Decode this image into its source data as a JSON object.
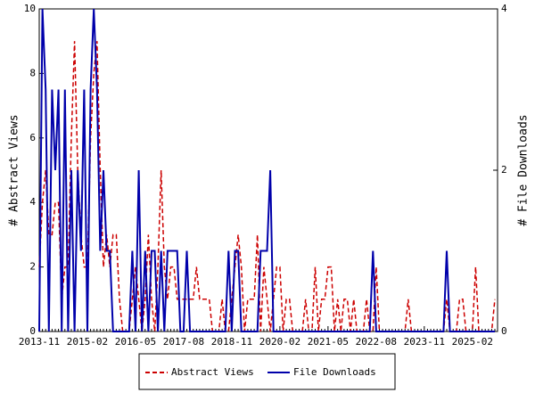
{
  "chart_data": {
    "type": "line",
    "y_label": "# Abstract Views",
    "y2_label": "# File Downloads",
    "categories": [
      "2013-11",
      null,
      null,
      null,
      null,
      null,
      null,
      null,
      null,
      null,
      null,
      null,
      null,
      null,
      null,
      "2015-02",
      null,
      null,
      null,
      null,
      null,
      null,
      null,
      null,
      null,
      null,
      null,
      null,
      null,
      null,
      "2016-05",
      null,
      null,
      null,
      null,
      null,
      null,
      null,
      null,
      null,
      null,
      null,
      null,
      null,
      null,
      "2017-08",
      null,
      null,
      null,
      null,
      null,
      null,
      null,
      null,
      null,
      null,
      null,
      null,
      null,
      null,
      "2018-11",
      null,
      null,
      null,
      null,
      null,
      null,
      null,
      null,
      null,
      null,
      null,
      null,
      null,
      null,
      "2020-02",
      null,
      null,
      null,
      null,
      null,
      null,
      null,
      null,
      null,
      null,
      null,
      null,
      null,
      null,
      "2021-05",
      null,
      null,
      null,
      null,
      null,
      null,
      null,
      null,
      null,
      null,
      null,
      null,
      null,
      null,
      "2022-08",
      null,
      null,
      null,
      null,
      null,
      null,
      null,
      null,
      null,
      null,
      null,
      null,
      null,
      null,
      "2023-11",
      null,
      null,
      null,
      null,
      null,
      null,
      null,
      null,
      null,
      null,
      null,
      null,
      null,
      null,
      "2025-02",
      null,
      null,
      null,
      null,
      null,
      null,
      null
    ],
    "series": [
      {
        "name": "Abstract Views",
        "color": "#cc0000",
        "style": "dashed",
        "values": [
          2,
          4,
          5,
          3,
          3,
          4,
          4,
          1,
          2,
          2,
          6,
          9,
          5,
          3,
          2,
          2,
          6,
          8,
          9,
          5,
          2,
          3,
          2,
          3,
          3,
          1,
          0,
          0,
          0,
          1,
          2,
          1,
          0,
          1,
          3,
          1,
          0,
          2,
          5,
          2,
          1,
          2,
          2,
          1,
          1,
          1,
          1,
          1,
          1,
          2,
          1,
          1,
          1,
          1,
          0,
          0,
          0,
          1,
          0,
          0,
          1,
          2,
          3,
          2,
          0,
          1,
          1,
          1,
          3,
          0,
          2,
          1,
          0,
          1,
          2,
          2,
          0,
          1,
          1,
          0,
          0,
          0,
          0,
          1,
          0,
          0,
          2,
          0,
          1,
          1,
          2,
          2,
          0,
          1,
          0,
          1,
          1,
          0,
          1,
          0,
          0,
          0,
          1,
          0,
          0,
          2,
          0,
          0,
          0,
          0,
          0,
          0,
          0,
          0,
          0,
          1,
          0,
          0,
          0,
          0,
          0,
          0,
          0,
          0,
          0,
          0,
          0,
          1,
          0,
          0,
          0,
          1,
          1,
          0,
          0,
          0,
          2,
          0,
          0,
          0,
          0,
          0,
          1
        ]
      },
      {
        "name": "File Downloads",
        "color": "#0000aa",
        "style": "solid",
        "axis": "y2",
        "values": [
          0,
          4,
          3,
          0,
          3,
          2,
          3,
          0,
          3,
          0,
          2,
          0,
          2,
          1,
          3,
          0,
          3,
          4,
          3,
          1,
          2,
          1,
          1,
          0,
          0,
          0,
          0,
          0,
          0,
          1,
          0,
          2,
          0,
          1,
          0,
          1,
          1,
          0,
          1,
          0,
          1,
          1,
          1,
          1,
          0,
          0,
          1,
          0,
          0,
          0,
          0,
          0,
          0,
          0,
          0,
          0,
          0,
          0,
          0,
          1,
          0,
          1,
          1,
          0,
          0,
          0,
          0,
          0,
          0,
          1,
          1,
          1,
          2,
          0,
          0,
          0,
          0,
          0,
          0,
          0,
          0,
          0,
          0,
          0,
          0,
          0,
          0,
          0,
          0,
          0,
          0,
          0,
          0,
          0,
          0,
          0,
          0,
          0,
          0,
          0,
          0,
          0,
          0,
          0,
          1,
          0,
          0,
          0,
          0,
          0,
          0,
          0,
          0,
          0,
          0,
          0,
          0,
          0,
          0,
          0,
          0,
          0,
          0,
          0,
          0,
          0,
          0,
          1,
          0,
          0,
          0,
          0,
          0,
          0,
          0,
          0,
          0,
          0,
          0,
          0,
          0,
          0,
          0
        ]
      }
    ],
    "ylim": [
      0,
      10
    ],
    "yticks": [
      0,
      2,
      4,
      6,
      8,
      10
    ],
    "y2lim": [
      0,
      4
    ],
    "y2ticks": [
      0,
      2,
      4
    ],
    "legend": "bottom",
    "grid": false
  }
}
